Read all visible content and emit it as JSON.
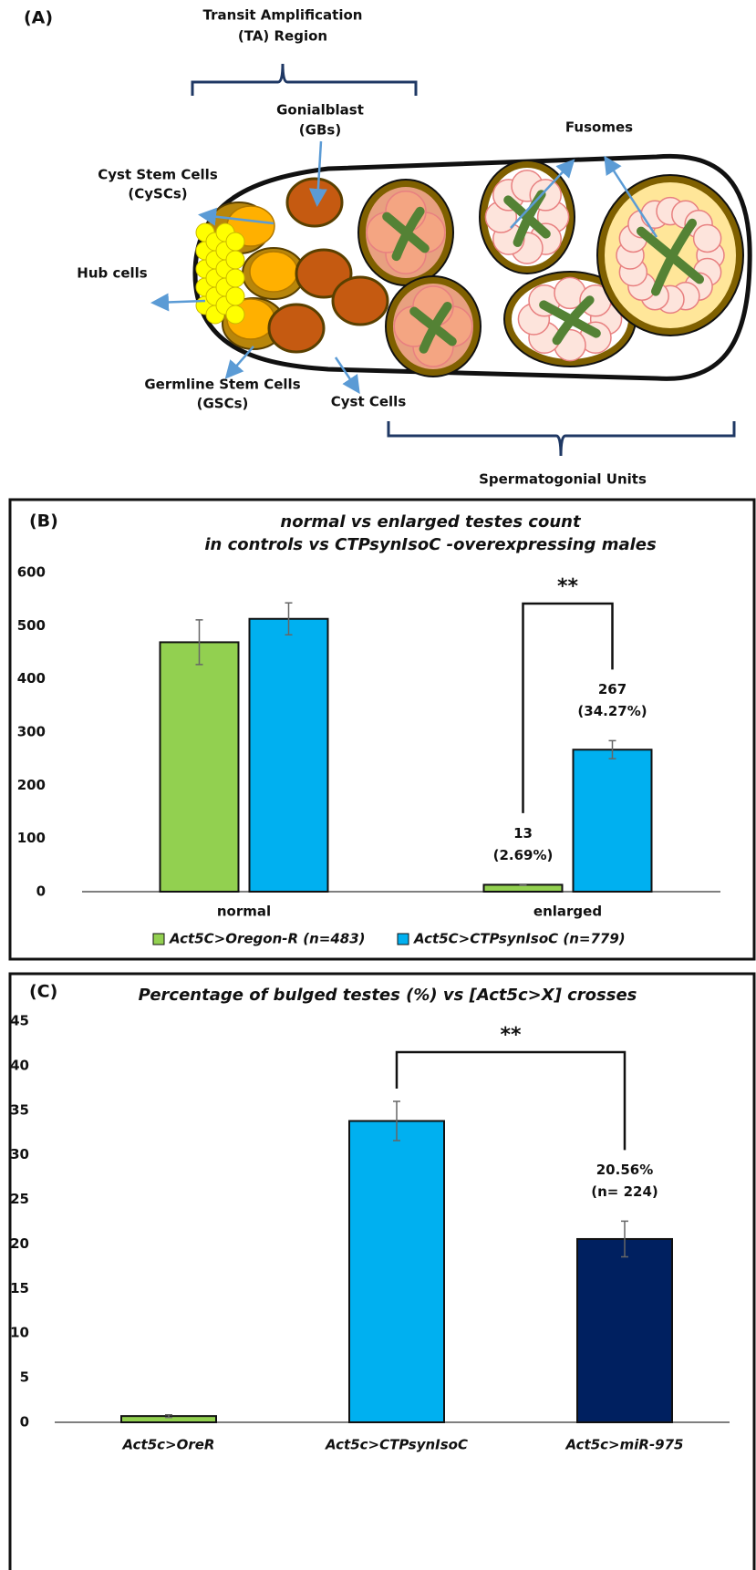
{
  "panel_a": {
    "label": "(A)",
    "ta_region": [
      "Transit Amplification",
      "(TA) Region"
    ],
    "gonialblast": [
      "Gonialblast",
      "(GBs)"
    ],
    "fusomes": "Fusomes",
    "cyst_stem_cells": [
      "Cyst Stem Cells",
      "(CySCs)"
    ],
    "hub_cells": "Hub cells",
    "germline_stem_cells": [
      "Germline Stem Cells",
      "(GSCs)"
    ],
    "cyst_cells": "Cyst Cells",
    "spermatogonial_units": "Spermatogonial Units"
  },
  "chart_data": [
    {
      "type": "bar",
      "panel_label": "(B)",
      "title": [
        "normal vs enlarged testes count",
        "in controls vs CTPsynIsoC -overexpressing males"
      ],
      "categories": [
        "normal",
        "enlarged"
      ],
      "series": [
        {
          "name": "Act5C>Oregon-R (n=483)",
          "color": "#92d050",
          "values": [
            469,
            13
          ],
          "errors": [
            42,
            1
          ],
          "value_labels": [
            null,
            "13\n(2.69%)"
          ]
        },
        {
          "name": "Act5C>CTPsynIsoC (n=779)",
          "color": "#00b0f0",
          "values": [
            513,
            267
          ],
          "errors": [
            30,
            17
          ],
          "value_labels": [
            null,
            "267\n(34.27%)"
          ]
        }
      ],
      "ylim": [
        0,
        600
      ],
      "yticks": [
        0,
        100,
        200,
        300,
        400,
        500,
        600
      ],
      "significance": "**",
      "legend": "bottom"
    },
    {
      "type": "bar",
      "panel_label": "(C)",
      "title": [
        "Percentage of bulged testes (%) vs [Act5c>X] crosses"
      ],
      "categories": [
        "Act5c>OreR",
        "Act5c>CTPsynIsoC",
        "Act5c>miR-975"
      ],
      "values": [
        0.7,
        33.8,
        20.56
      ],
      "errors": [
        0.15,
        2.2,
        2
      ],
      "colors": [
        "#92d050",
        "#00b0f0",
        "#002060"
      ],
      "value_labels": [
        null,
        null,
        "20.56%\n(n= 224)"
      ],
      "ylim": [
        0,
        45
      ],
      "yticks": [
        0,
        5,
        10,
        15,
        20,
        25,
        30,
        35,
        40,
        45
      ],
      "significance": "**"
    }
  ]
}
